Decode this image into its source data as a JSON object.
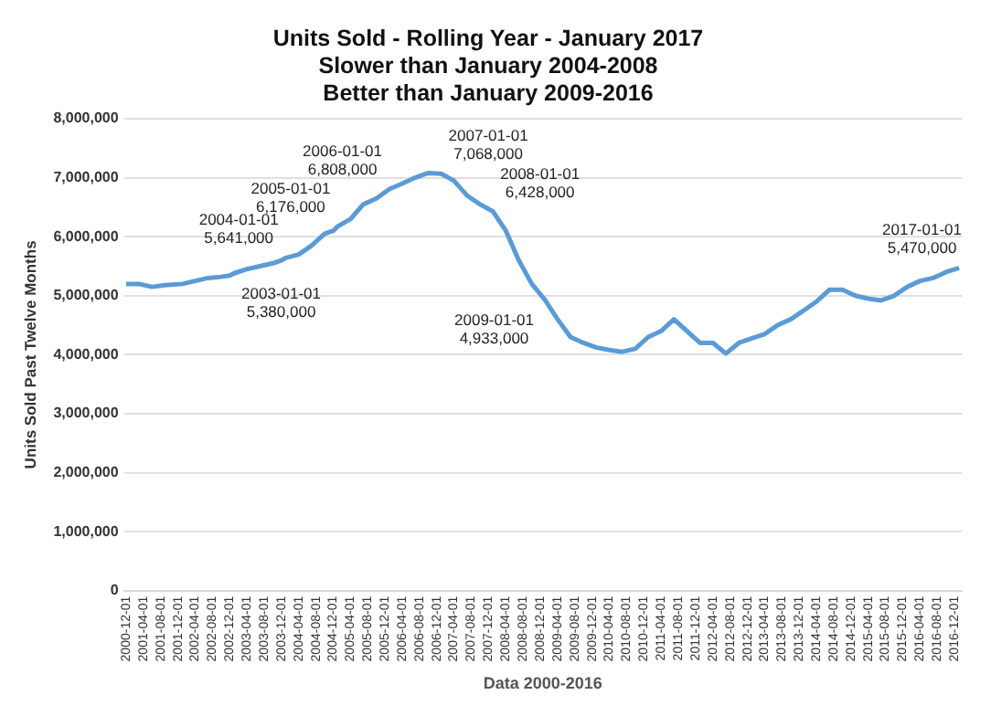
{
  "chart_data": {
    "type": "line",
    "title": "Units Sold - Rolling Year - January 2017",
    "subtitle": "Slower than January 2004-2008\nBetter than January 2009-2016",
    "xlabel": "Data 2000-2016",
    "ylabel": "Units Sold Past Twelve Months",
    "x": [
      "2000-12-01",
      "2001-03-01",
      "2001-06-01",
      "2001-09-01",
      "2002-01-01",
      "2002-04-01",
      "2002-07-01",
      "2002-10-01",
      "2002-12-01",
      "2003-01-01",
      "2003-04-01",
      "2003-07-01",
      "2003-10-01",
      "2003-12-01",
      "2004-01-01",
      "2004-04-01",
      "2004-07-01",
      "2004-10-01",
      "2004-12-01",
      "2005-01-01",
      "2005-04-01",
      "2005-07-01",
      "2005-10-01",
      "2006-01-01",
      "2006-04-01",
      "2006-07-01",
      "2006-10-01",
      "2007-01-01",
      "2007-04-01",
      "2007-07-01",
      "2007-10-01",
      "2008-01-01",
      "2008-04-01",
      "2008-07-01",
      "2008-10-01",
      "2009-01-01",
      "2009-04-01",
      "2009-07-01",
      "2009-10-01",
      "2010-01-01",
      "2010-04-01",
      "2010-07-01",
      "2010-10-01",
      "2011-01-01",
      "2011-04-01",
      "2011-07-01",
      "2011-10-01",
      "2012-01-01",
      "2012-04-01",
      "2012-07-01",
      "2012-10-01",
      "2013-01-01",
      "2013-04-01",
      "2013-07-01",
      "2013-10-01",
      "2014-01-01",
      "2014-04-01",
      "2014-07-01",
      "2014-10-01",
      "2015-01-01",
      "2015-04-01",
      "2015-07-01",
      "2015-10-01",
      "2016-01-01",
      "2016-04-01",
      "2016-07-01",
      "2016-10-01",
      "2017-01-01"
    ],
    "series": [
      {
        "color": "#5b9bd5",
        "values": [
          5200000,
          5200000,
          5150000,
          5180000,
          5200000,
          5250000,
          5300000,
          5320000,
          5340000,
          5380000,
          5450000,
          5500000,
          5550000,
          5600000,
          5641000,
          5700000,
          5850000,
          6050000,
          6100000,
          6176000,
          6300000,
          6550000,
          6650000,
          6808000,
          6900000,
          7000000,
          7080000,
          7068000,
          6950000,
          6700000,
          6550000,
          6428000,
          6100000,
          5600000,
          5200000,
          4933000,
          4600000,
          4300000,
          4200000,
          4120000,
          4080000,
          4050000,
          4100000,
          4300000,
          4400000,
          4600000,
          4400000,
          4200000,
          4200000,
          4020000,
          4200000,
          4280000,
          4350000,
          4500000,
          4600000,
          4750000,
          4900000,
          5100000,
          5100000,
          5000000,
          4950000,
          4920000,
          5000000,
          5150000,
          5250000,
          5300000,
          5400000,
          5470000
        ]
      }
    ],
    "xlim": [
      "2000-11-15",
      "2017-01-20"
    ],
    "xticks": [
      "2000-12-01",
      "2001-04-01",
      "2001-08-01",
      "2001-12-01",
      "2002-04-01",
      "2002-08-01",
      "2002-12-01",
      "2003-04-01",
      "2003-08-01",
      "2003-12-01",
      "2004-04-01",
      "2004-08-01",
      "2004-12-01",
      "2005-04-01",
      "2005-08-01",
      "2005-12-01",
      "2006-04-01",
      "2006-08-01",
      "2006-12-01",
      "2007-04-01",
      "2007-08-01",
      "2007-12-01",
      "2008-04-01",
      "2008-08-01",
      "2008-12-01",
      "2009-04-01",
      "2009-08-01",
      "2009-12-01",
      "2010-04-01",
      "2010-08-01",
      "2010-12-01",
      "2011-04-01",
      "2011-08-01",
      "2011-12-01",
      "2012-04-01",
      "2012-08-01",
      "2012-12-01",
      "2013-04-01",
      "2013-08-01",
      "2013-12-01",
      "2014-04-01",
      "2014-08-01",
      "2014-12-01",
      "2015-04-01",
      "2015-08-01",
      "2015-12-01",
      "2016-04-01",
      "2016-08-01",
      "2016-12-01"
    ],
    "ylim": [
      0,
      8000000
    ],
    "yticks": [
      0,
      {
        "value": 1000000,
        "label": "1,000,000"
      },
      {
        "value": 2000000,
        "label": "2,000,000"
      },
      {
        "value": 3000000,
        "label": "3,000,000"
      },
      {
        "value": 4000000,
        "label": "4,000,000"
      },
      {
        "value": 5000000,
        "label": "5,000,000"
      },
      {
        "value": 6000000,
        "label": "6,000,000"
      },
      {
        "value": 7000000,
        "label": "7,000,000"
      },
      {
        "value": 8000000,
        "label": "8,000,000"
      }
    ],
    "annotations": [
      {
        "text": "2003-01-01\n5,380,000",
        "x": "2003-01-01",
        "y": 5380000
      },
      {
        "text": "2004-01-01\n5,641,000",
        "x": "2004-01-01",
        "y": 5641000
      },
      {
        "text": "2005-01-01\n6,176,000",
        "x": "2005-01-01",
        "y": 6176000
      },
      {
        "text": "2006-01-01\n6,808,000",
        "x": "2006-01-01",
        "y": 6808000
      },
      {
        "text": "2007-01-01\n7,068,000",
        "x": "2007-01-01",
        "y": 7068000
      },
      {
        "text": "2008-01-01\n6,428,000",
        "x": "2008-01-01",
        "y": 6428000
      },
      {
        "text": "2009-01-01\n4,933,000",
        "x": "2009-01-01",
        "y": 4933000
      },
      {
        "text": "2017-01-01\n5,470,000",
        "x": "2017-01-01",
        "y": 5470000
      }
    ],
    "grid": "y",
    "legend": false
  }
}
